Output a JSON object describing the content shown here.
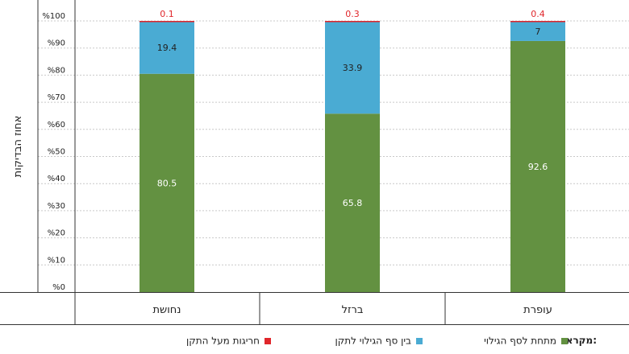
{
  "chart_data": {
    "type": "bar",
    "stacked": true,
    "categories": [
      "נחושת",
      "ברזל",
      "עופרת"
    ],
    "series": [
      {
        "name": "מתחת לסף הגילוי",
        "color": "#639141",
        "values": [
          80.5,
          65.8,
          92.6
        ]
      },
      {
        "name": "בין סף הגילוי לתקן",
        "color": "#4aabd3",
        "values": [
          19.4,
          33.9,
          7
        ]
      },
      {
        "name": "חריגות מעל התקן",
        "color": "#e0262b",
        "values": [
          0.1,
          0.3,
          0.4
        ]
      }
    ],
    "ylabel": "אחוז הבדיקות",
    "yticks": [
      "%0",
      "%10",
      "%20",
      "%30",
      "%40",
      "%50",
      "%60",
      "%70",
      "%80",
      "%90",
      "%100"
    ],
    "ylim": [
      0,
      100
    ],
    "legend_title": "מקרא:",
    "legend_position": "bottom"
  }
}
